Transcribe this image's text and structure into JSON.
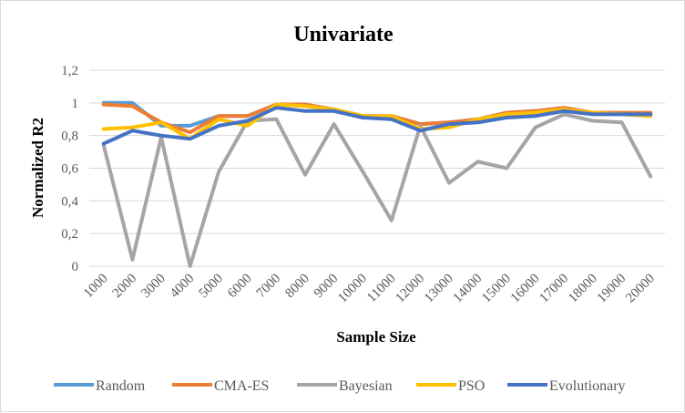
{
  "chart_data": {
    "type": "line",
    "title": "Univariate",
    "xlabel": "Sample Size",
    "ylabel": "Normalized R2",
    "ylim": [
      0,
      1.2
    ],
    "yticks": [
      "0",
      "0,2",
      "0,4",
      "0,6",
      "0,8",
      "1",
      "1,2"
    ],
    "ytick_values": [
      0,
      0.2,
      0.4,
      0.6,
      0.8,
      1.0,
      1.2
    ],
    "categories": [
      "1000",
      "2000",
      "3000",
      "4000",
      "5000",
      "6000",
      "7000",
      "8000",
      "9000",
      "10000",
      "11000",
      "12000",
      "13000",
      "14000",
      "15000",
      "16000",
      "17000",
      "18000",
      "19000",
      "20000"
    ],
    "grid": true,
    "legend_position": "bottom",
    "series": [
      {
        "name": "Random",
        "color": "#5B9BD5",
        "values": [
          1.0,
          1.0,
          0.86,
          0.86,
          0.92,
          0.92,
          0.99,
          0.99,
          0.96,
          0.92,
          0.92,
          0.87,
          0.88,
          0.9,
          0.94,
          0.95,
          0.97,
          0.94,
          0.94,
          0.93
        ]
      },
      {
        "name": "CMA-ES",
        "color": "#ED7D31",
        "values": [
          0.99,
          0.98,
          0.88,
          0.82,
          0.92,
          0.92,
          0.99,
          0.99,
          0.96,
          0.92,
          0.92,
          0.87,
          0.88,
          0.9,
          0.94,
          0.95,
          0.97,
          0.94,
          0.94,
          0.94
        ]
      },
      {
        "name": "Bayesian",
        "color": "#A5A5A5",
        "values": [
          0.74,
          0.04,
          0.79,
          0.0,
          0.58,
          0.89,
          0.9,
          0.56,
          0.87,
          0.58,
          0.28,
          0.86,
          0.51,
          0.64,
          0.6,
          0.85,
          0.93,
          0.89,
          0.88,
          0.55
        ]
      },
      {
        "name": "PSO",
        "color": "#FFC000",
        "values": [
          0.84,
          0.85,
          0.88,
          0.78,
          0.9,
          0.86,
          0.99,
          0.98,
          0.96,
          0.92,
          0.92,
          0.84,
          0.85,
          0.9,
          0.93,
          0.94,
          0.96,
          0.94,
          0.93,
          0.92
        ]
      },
      {
        "name": "Evolutionary",
        "color": "#4472C4",
        "values": [
          0.75,
          0.83,
          0.8,
          0.78,
          0.86,
          0.89,
          0.97,
          0.95,
          0.95,
          0.91,
          0.9,
          0.83,
          0.87,
          0.88,
          0.91,
          0.92,
          0.95,
          0.93,
          0.93,
          0.93
        ]
      }
    ]
  },
  "colors": {
    "gridline": "#D9D9D9",
    "tick_text": "#595959"
  }
}
